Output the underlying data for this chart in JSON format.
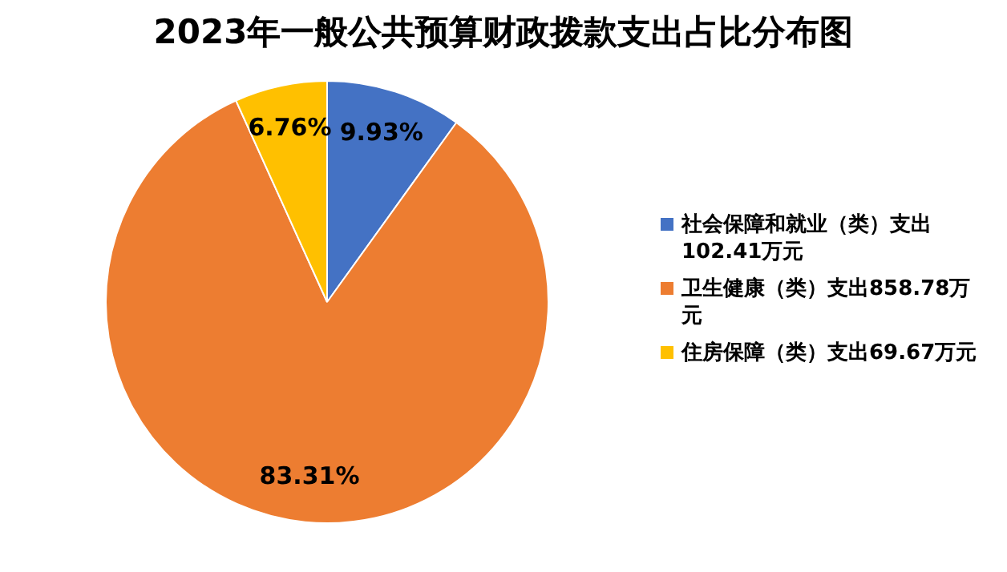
{
  "chart_data": {
    "type": "pie",
    "title": "2023年一般公共预算财政拨款支出占比分布图",
    "categories": [
      "社会保障和就业（类）支出102.41万元",
      "卫生健康（类）支出858.78万元",
      "住房保障（类）支出69.67万元"
    ],
    "values": [
      9.93,
      83.31,
      6.76
    ],
    "colors": [
      "#4472c4",
      "#ed7d31",
      "#ffc000"
    ],
    "value_labels": [
      "9.93%",
      "83.31%",
      "6.76%"
    ],
    "legend": "right"
  }
}
